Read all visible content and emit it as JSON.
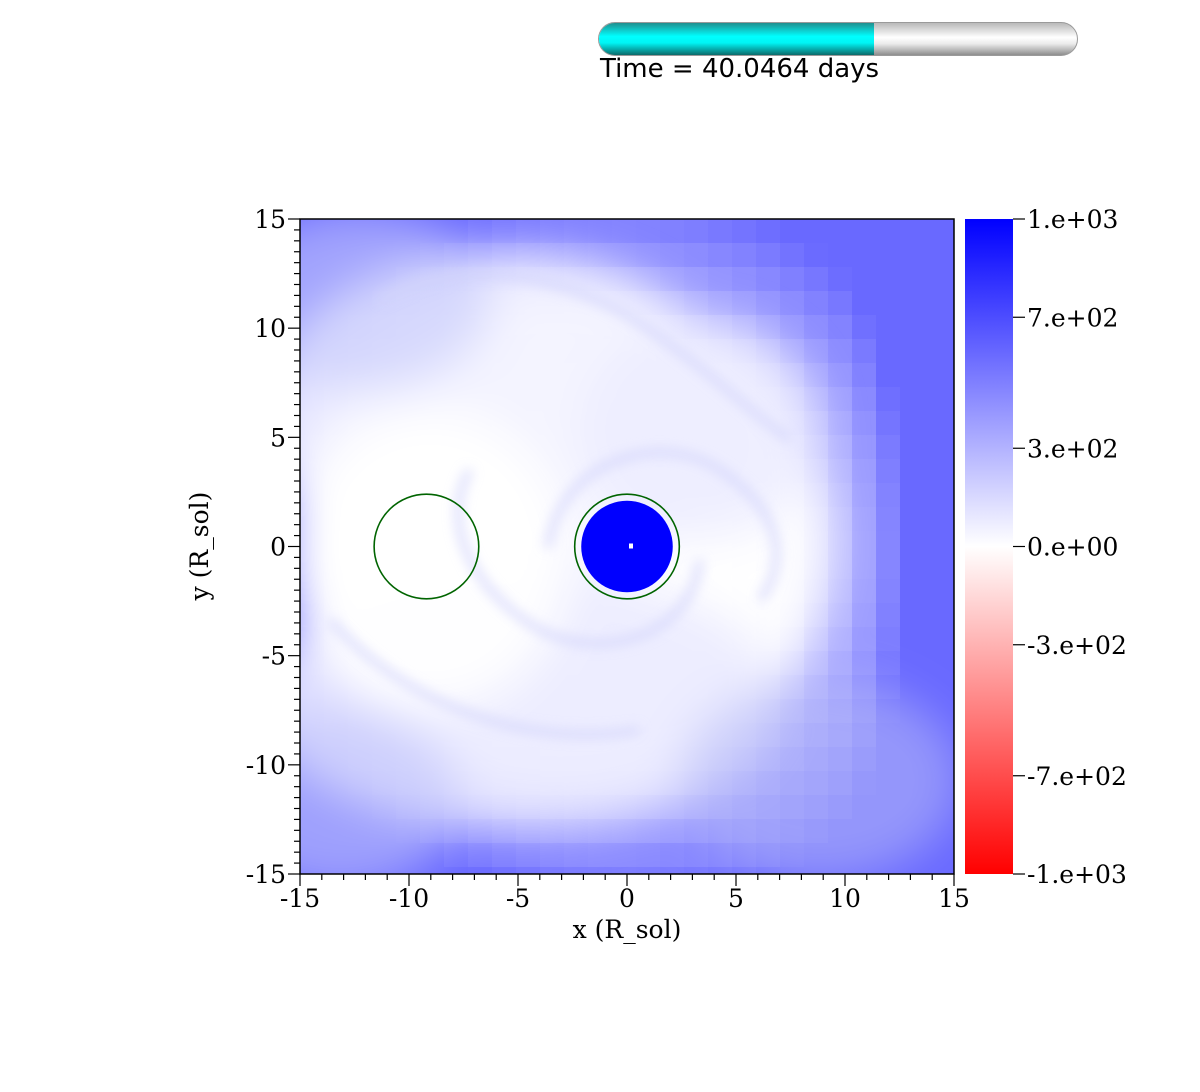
{
  "time_slider": {
    "label": "Time = 40.0464 days",
    "progress": 0.575,
    "fill_color": "#00ffff"
  },
  "chart_data": {
    "type": "heatmap",
    "title": "",
    "xlabel": "x (R_sol)",
    "ylabel": "y (R_sol)",
    "xlim": [
      -15,
      15
    ],
    "ylim": [
      -15,
      15
    ],
    "x_ticks": [
      -15,
      -10,
      -5,
      0,
      5,
      10,
      15
    ],
    "y_ticks": [
      -15,
      -10,
      -5,
      0,
      5,
      10,
      15
    ],
    "x_tick_labels": [
      "-15",
      "-10",
      "-5",
      "0",
      "5",
      "10",
      "15"
    ],
    "y_tick_labels": [
      "-15",
      "-10",
      "-5",
      "0",
      "5",
      "10",
      "15"
    ],
    "colorbar": {
      "range": [
        -1000,
        1000
      ],
      "ticks": [
        1000,
        700,
        300,
        0,
        -300,
        -700,
        -1000
      ],
      "labels": [
        "1.e+03",
        "7.e+02",
        "3.e+02",
        "0.e+00",
        "-3.e+02",
        "-7.e+02",
        "-1.e+03"
      ],
      "colormap": [
        "#ff0000",
        "#ffffff",
        "#0000ff"
      ]
    },
    "circles": [
      {
        "cx": -9.2,
        "cy": 0,
        "r": 2.4,
        "color": "#006400"
      },
      {
        "cx": 0,
        "cy": 0,
        "r": 2.4,
        "color": "#006400"
      }
    ],
    "core": {
      "cx": 0,
      "cy": 0,
      "r": 2.1,
      "value": 1000
    }
  }
}
